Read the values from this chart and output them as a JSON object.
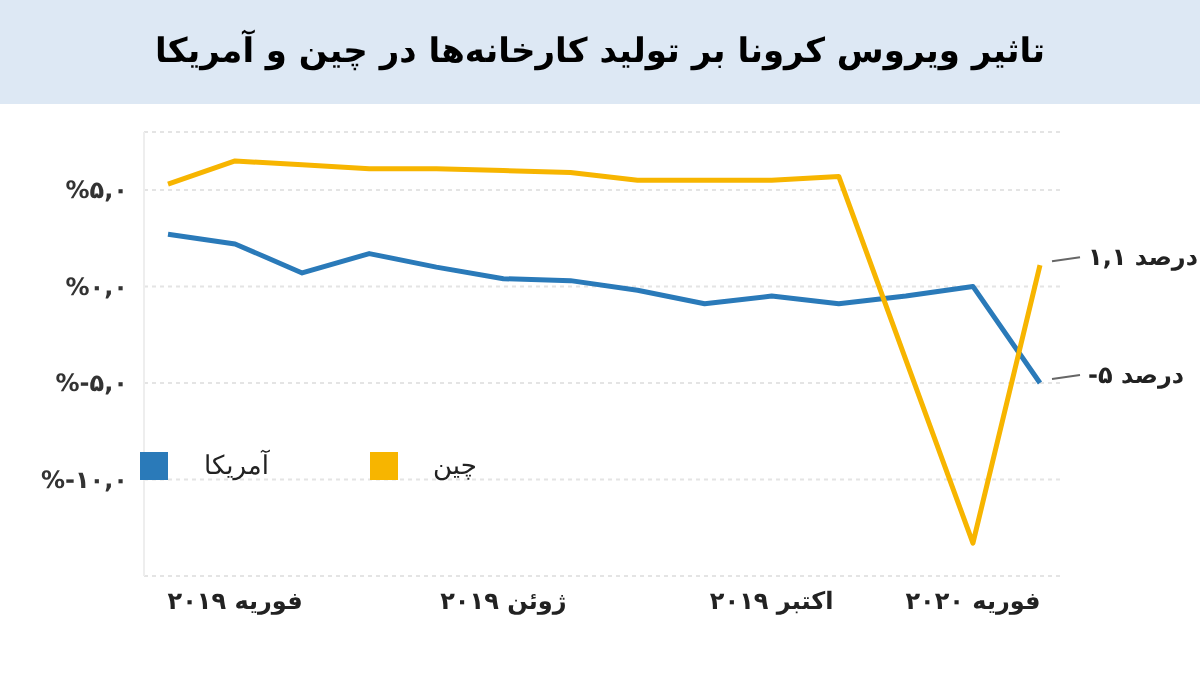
{
  "chart_data": {
    "type": "line",
    "title": "تاثیر ویروس کرونا بر تولید کارخانه‌ها در چین و آمریکا",
    "categories": [
      null,
      "فوریه ۲۰۱۹",
      null,
      null,
      null,
      "ژوئن ۲۰۱۹",
      null,
      null,
      null,
      "اکتبر ۲۰۱۹",
      null,
      null,
      "فوریه ۲۰۲۰",
      null
    ],
    "series": [
      {
        "name": "آمریکا",
        "color": "#2a7ab9",
        "values": [
          2.7,
          2.2,
          0.7,
          1.7,
          1.0,
          0.4,
          0.3,
          -0.2,
          -0.9,
          -0.5,
          -0.9,
          -0.5,
          0,
          -5
        ],
        "value_labels": [
          null,
          null,
          null,
          null,
          null,
          null,
          null,
          null,
          null,
          null,
          null,
          null,
          null,
          "-۵ درصد"
        ]
      },
      {
        "name": "چین",
        "color": "#f7b500",
        "values": [
          5.3,
          6.5,
          6.3,
          6.1,
          6.1,
          6.0,
          5.9,
          5.5,
          5.5,
          5.5,
          5.7,
          -3.8,
          -13.3,
          1.1
        ],
        "value_labels": [
          null,
          null,
          null,
          null,
          null,
          null,
          null,
          null,
          null,
          null,
          null,
          null,
          null,
          "۱,۱ درصد"
        ]
      }
    ],
    "ylim": [
      -15,
      8
    ],
    "yticks": [
      {
        "value": 5,
        "label": "%۵,۰"
      },
      {
        "value": 0,
        "label": "%۰,۰"
      },
      {
        "value": -5,
        "label": "%-۵,۰"
      },
      {
        "value": -10,
        "label": "%-۱۰,۰"
      }
    ],
    "grid": "y",
    "legend": "left",
    "marker": "none",
    "line_style": "solid"
  }
}
